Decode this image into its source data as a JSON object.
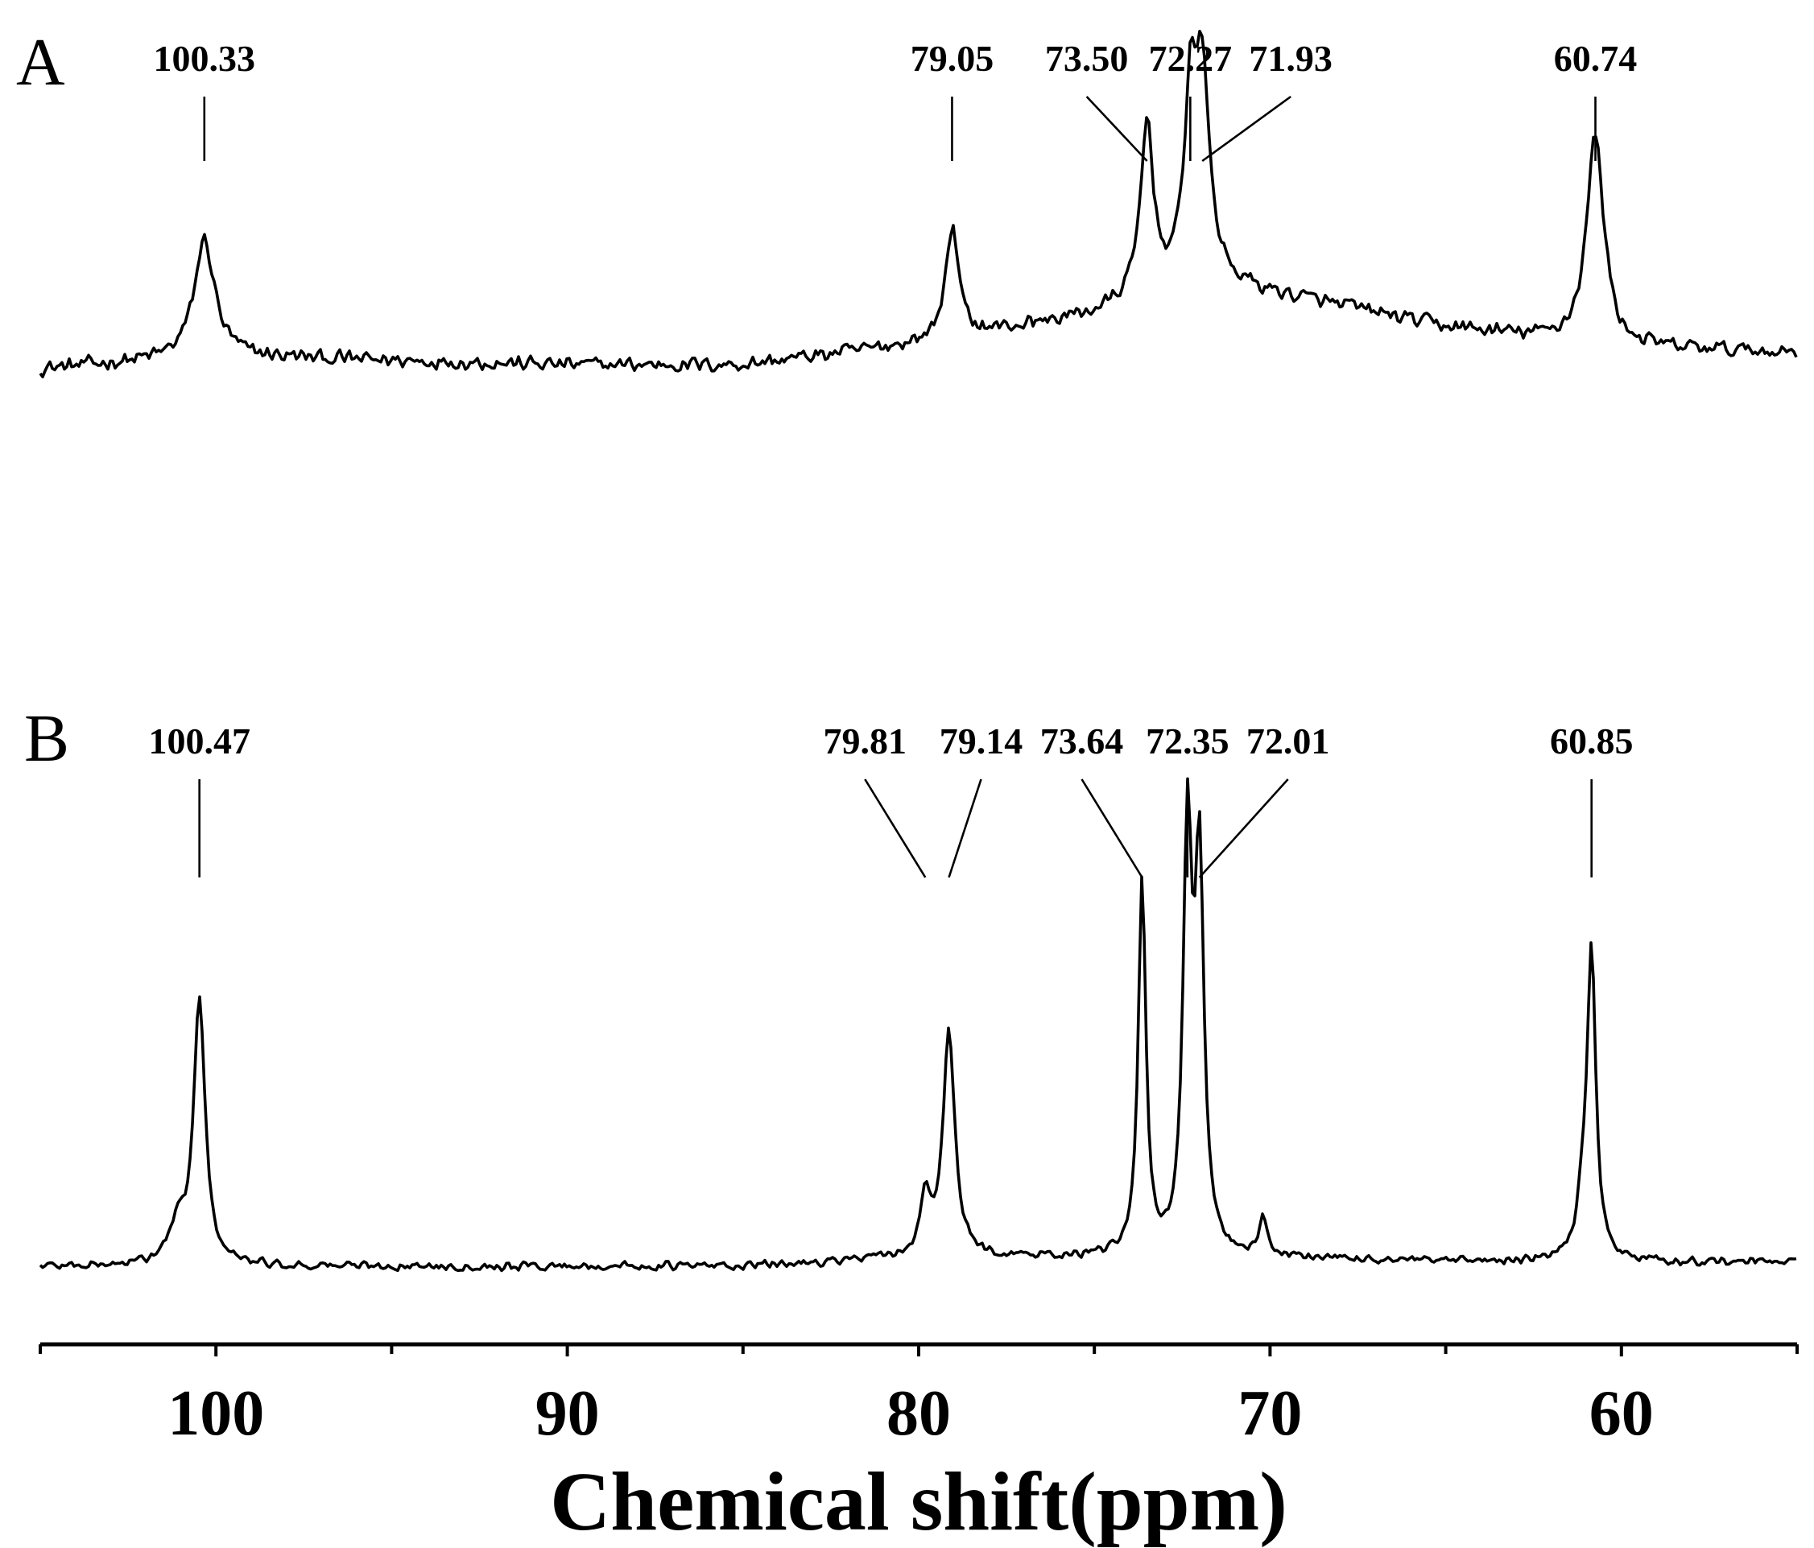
{
  "chart_data": {
    "type": "line",
    "x_label": "Chemical shift(ppm)",
    "x_range": [
      105,
      55
    ],
    "x_reversed": true,
    "x_ticks": [
      100,
      90,
      80,
      70,
      60
    ],
    "x_minor_ticks": [
      105,
      95,
      85,
      75,
      65,
      55
    ],
    "y_axis_shown": false,
    "grid": false,
    "legend": "none",
    "panels": [
      {
        "id": "A",
        "letter": "A",
        "baseline": [
          [
            105,
            0.09
          ],
          [
            100,
            0.12
          ],
          [
            95,
            0.11
          ],
          [
            90,
            0.1
          ],
          [
            85,
            0.1
          ],
          [
            80,
            0.15
          ],
          [
            75,
            0.22
          ],
          [
            72,
            0.3
          ],
          [
            68,
            0.24
          ],
          [
            65,
            0.19
          ],
          [
            60,
            0.14
          ],
          [
            55,
            0.13
          ]
        ],
        "noise": 0.022,
        "peaks": [
          {
            "ppm": 100.33,
            "height": 0.28,
            "width": 0.35,
            "label": "100.33"
          },
          {
            "ppm": 79.05,
            "height": 0.27,
            "width": 0.22,
            "label": "79.05"
          },
          {
            "ppm": 73.5,
            "height": 0.41,
            "width": 0.22,
            "label": "73.50"
          },
          {
            "ppm": 72.27,
            "height": 0.4,
            "width": 0.2,
            "label": "72.27"
          },
          {
            "ppm": 71.93,
            "height": 0.47,
            "width": 0.25,
            "label": "71.93"
          },
          {
            "ppm": 60.74,
            "height": 0.5,
            "width": 0.3,
            "label": "60.74"
          }
        ]
      },
      {
        "id": "B",
        "letter": "B",
        "baseline": [
          [
            105,
            0.05
          ],
          [
            95,
            0.05
          ],
          [
            85,
            0.05
          ],
          [
            80,
            0.07
          ],
          [
            75,
            0.07
          ],
          [
            70,
            0.07
          ],
          [
            65,
            0.06
          ],
          [
            60,
            0.06
          ],
          [
            55,
            0.06
          ]
        ],
        "noise": 0.012,
        "peaks": [
          {
            "ppm": 101.1,
            "height": 0.08,
            "width": 0.3,
            "label": ""
          },
          {
            "ppm": 100.47,
            "height": 0.6,
            "width": 0.2,
            "label": "100.47"
          },
          {
            "ppm": 79.81,
            "height": 0.14,
            "width": 0.15,
            "label": "79.81"
          },
          {
            "ppm": 79.14,
            "height": 0.52,
            "width": 0.2,
            "label": "79.14"
          },
          {
            "ppm": 73.64,
            "height": 0.86,
            "width": 0.13,
            "label": "73.64"
          },
          {
            "ppm": 72.35,
            "height": 0.95,
            "width": 0.15,
            "label": "72.35"
          },
          {
            "ppm": 72.01,
            "height": 0.88,
            "width": 0.15,
            "label": "72.01"
          },
          {
            "ppm": 70.2,
            "height": 0.08,
            "width": 0.15,
            "label": ""
          },
          {
            "ppm": 61.1,
            "height": 0.1,
            "width": 0.2,
            "label": ""
          },
          {
            "ppm": 60.85,
            "height": 0.7,
            "width": 0.15,
            "label": "60.85"
          }
        ]
      }
    ]
  }
}
